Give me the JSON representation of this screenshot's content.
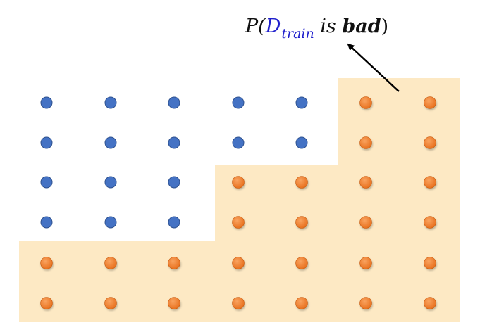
{
  "formula": {
    "prefix": "P(",
    "dataset_symbol": "D",
    "subscript": "train",
    "middle": " is ",
    "emphasis": "bad",
    "suffix": ")"
  },
  "colors": {
    "region": "#fde9c4",
    "blue_dot": "#4472c4",
    "blue_dot_stroke": "#2f528f",
    "orange_dot": "#ed7d31",
    "orange_dot_stroke": "#c55a11",
    "arrow": "#000000"
  },
  "grid": {
    "columns": 7,
    "rows": 6,
    "orange_from_row_by_column": [
      4,
      4,
      4,
      2,
      2,
      0,
      0
    ]
  }
}
